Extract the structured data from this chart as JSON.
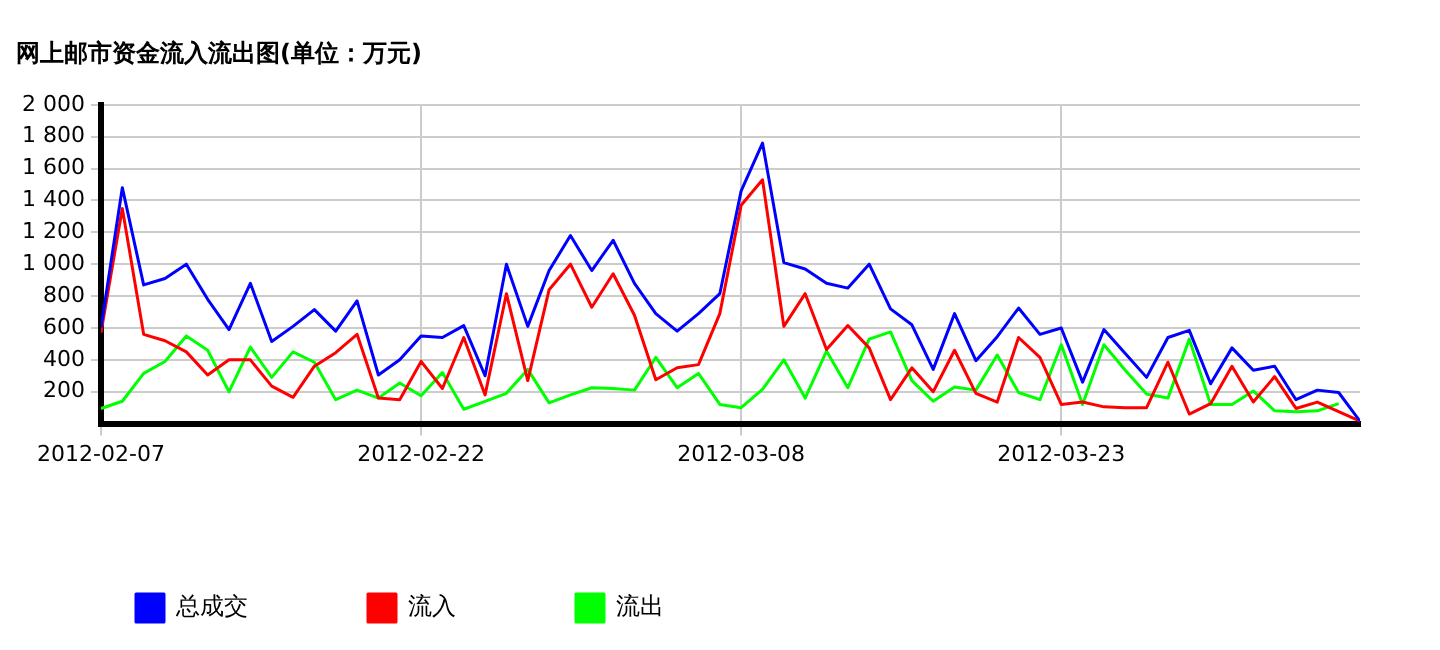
{
  "chart_data": {
    "type": "line",
    "title": "网上邮市资金流入流出图(单位：万元)",
    "x": [
      "2012-02-07",
      "2012-02-08",
      "2012-02-09",
      "2012-02-10",
      "2012-02-11",
      "2012-02-12",
      "2012-02-13",
      "2012-02-14",
      "2012-02-15",
      "2012-02-16",
      "2012-02-17",
      "2012-02-18",
      "2012-02-19",
      "2012-02-20",
      "2012-02-21",
      "2012-02-22",
      "2012-02-23",
      "2012-02-24",
      "2012-02-25",
      "2012-02-26",
      "2012-02-27",
      "2012-02-28",
      "2012-02-29",
      "2012-03-01",
      "2012-03-02",
      "2012-03-03",
      "2012-03-04",
      "2012-03-05",
      "2012-03-06",
      "2012-03-07",
      "2012-03-08",
      "2012-03-09",
      "2012-03-10",
      "2012-03-11",
      "2012-03-12",
      "2012-03-13",
      "2012-03-14",
      "2012-03-15",
      "2012-03-16",
      "2012-03-17",
      "2012-03-18",
      "2012-03-19",
      "2012-03-20",
      "2012-03-21",
      "2012-03-22",
      "2012-03-23",
      "2012-03-24",
      "2012-03-25",
      "2012-03-26",
      "2012-03-27",
      "2012-03-28",
      "2012-03-29",
      "2012-03-30",
      "2012-03-31",
      "2012-04-01",
      "2012-04-02",
      "2012-04-03",
      "2012-04-04",
      "2012-04-05",
      "2012-04-06"
    ],
    "series": [
      {
        "name": "总成交",
        "color": "#0000ff",
        "values": [
          600,
          1480,
          870,
          910,
          1000,
          780,
          590,
          880,
          515,
          610,
          715,
          580,
          770,
          305,
          400,
          550,
          540,
          615,
          300,
          1000,
          610,
          960,
          1180,
          960,
          1150,
          880,
          690,
          580,
          690,
          815,
          1460,
          1760,
          1010,
          970,
          880,
          850,
          1000,
          720,
          620,
          340,
          690,
          395,
          545,
          725,
          560,
          600,
          260,
          590,
          440,
          290,
          540,
          585,
          250,
          475,
          335,
          360,
          150,
          210,
          195,
          15
        ]
      },
      {
        "name": "流入",
        "color": "#ff0000",
        "values": [
          570,
          1350,
          560,
          520,
          450,
          305,
          400,
          400,
          235,
          165,
          360,
          445,
          560,
          160,
          150,
          390,
          220,
          540,
          180,
          815,
          270,
          840,
          1000,
          730,
          940,
          680,
          275,
          350,
          370,
          690,
          1370,
          1530,
          610,
          815,
          465,
          615,
          475,
          150,
          350,
          200,
          460,
          190,
          135,
          540,
          415,
          120,
          135,
          105,
          100,
          100,
          385,
          60,
          125,
          360,
          135,
          295,
          95,
          135,
          75,
          15
        ]
      },
      {
        "name": "流出",
        "color": "#00ff00",
        "values": [
          95,
          140,
          315,
          390,
          550,
          460,
          200,
          480,
          290,
          450,
          385,
          150,
          210,
          160,
          255,
          175,
          320,
          90,
          140,
          190,
          340,
          130,
          180,
          225,
          220,
          210,
          415,
          225,
          315,
          120,
          100,
          215,
          400,
          160,
          455,
          225,
          530,
          575,
          270,
          140,
          230,
          210,
          430,
          195,
          150,
          495,
          120,
          495,
          335,
          185,
          160,
          530,
          120,
          120,
          205,
          80,
          75,
          80,
          125,
          null
        ]
      }
    ],
    "xlim": [
      "2012-02-07",
      "2012-04-06"
    ],
    "xticks": [
      "2012-02-07",
      "2012-02-22",
      "2012-03-08",
      "2012-03-23"
    ],
    "ylim": [
      0,
      2000
    ],
    "yticks": [
      {
        "value": 200,
        "label": "200"
      },
      {
        "value": 400,
        "label": "400"
      },
      {
        "value": 600,
        "label": "600"
      },
      {
        "value": 800,
        "label": "800"
      },
      {
        "value": 1000,
        "label": "1 000"
      },
      {
        "value": 1200,
        "label": "1 200"
      },
      {
        "value": 1400,
        "label": "1 400"
      },
      {
        "value": 1600,
        "label": "1 600"
      },
      {
        "value": 1800,
        "label": "1 800"
      },
      {
        "value": 2000,
        "label": "2 000"
      }
    ],
    "grid": true,
    "legend": "bottom",
    "line_style": "solid",
    "marker": "none"
  }
}
